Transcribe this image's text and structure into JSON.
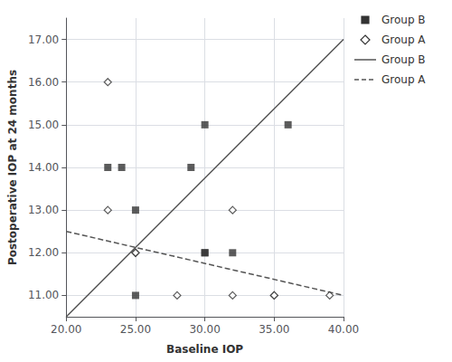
{
  "chart_data": {
    "type": "scatter",
    "xlabel": "Baseline IOP",
    "ylabel": "Postoperative IOP at 24 months",
    "xlim": [
      20.0,
      40.0
    ],
    "ylim": [
      10.5,
      17.5
    ],
    "xticks": [
      {
        "value": 20.0,
        "label": "20.00"
      },
      {
        "value": 25.0,
        "label": "25.00"
      },
      {
        "value": 30.0,
        "label": "30.00"
      },
      {
        "value": 35.0,
        "label": "35.00"
      },
      {
        "value": 40.0,
        "label": "40.00"
      }
    ],
    "yticks": [
      {
        "value": 11.0,
        "label": "11.00"
      },
      {
        "value": 12.0,
        "label": "12.00"
      },
      {
        "value": 13.0,
        "label": "13.00"
      },
      {
        "value": 14.0,
        "label": "14.00"
      },
      {
        "value": 15.0,
        "label": "15.00"
      },
      {
        "value": 16.0,
        "label": "16.00"
      },
      {
        "value": 17.0,
        "label": "17.00"
      }
    ],
    "grid": true,
    "legend": "right",
    "series": [
      {
        "name": "Group B",
        "type": "scatter",
        "marker": "square",
        "color": "#333333",
        "x": [
          23,
          24,
          25,
          25,
          29,
          30,
          30,
          30,
          32,
          36
        ],
        "values": [
          14,
          14,
          11,
          13,
          14,
          12,
          12,
          15,
          12,
          15
        ]
      },
      {
        "name": "Group A",
        "type": "scatter",
        "marker": "open_diamond",
        "color": "#333333",
        "x": [
          23,
          23,
          25,
          25,
          28,
          32,
          32,
          35,
          35,
          39
        ],
        "values": [
          13,
          16,
          12,
          12,
          11,
          11,
          13,
          11,
          11,
          11
        ]
      },
      {
        "name": "Group B",
        "type": "line",
        "line_style": "solid",
        "color": "#555555",
        "x": [
          20.0,
          40.0
        ],
        "values": [
          10.5,
          17.0
        ]
      },
      {
        "name": "Group A",
        "type": "line",
        "line_style": "dashed",
        "color": "#555555",
        "x": [
          20.0,
          40.0
        ],
        "values": [
          12.5,
          11.0
        ]
      }
    ]
  }
}
